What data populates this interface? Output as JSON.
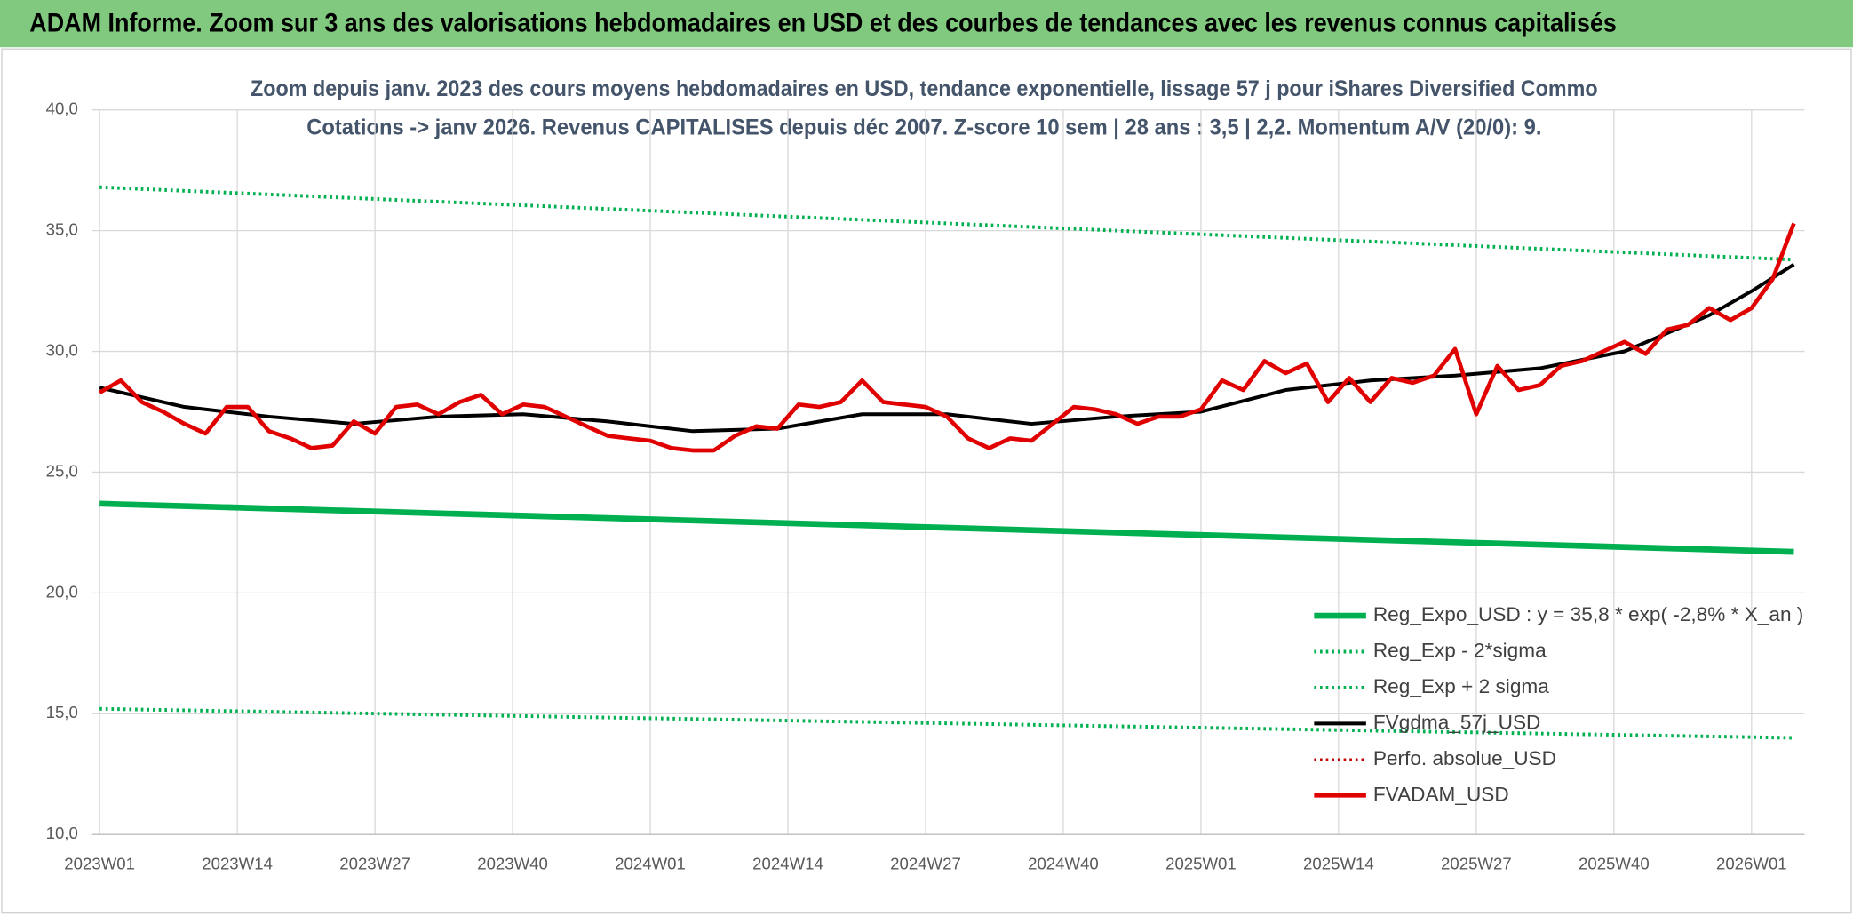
{
  "header": {
    "title": "ADAM Informe. Zoom sur 3 ans des valorisations hebdomadaires en USD et des courbes de tendances avec les revenus connus capitalisés"
  },
  "chart_data": {
    "type": "line",
    "title": "Zoom depuis janv. 2023 des cours moyens hebdomadaires en USD, tendance exponentielle, lissage 57 j pour iShares Diversified Commo",
    "subtitle": "Cotations -> janv 2026. Revenus CAPITALISES depuis déc 2007. Z-score 10 sem | 28 ans : 3,5 | 2,2. Momentum A/V (20/0): 9.",
    "xlim": [
      -0.7,
      161
    ],
    "xticks": [
      {
        "value": 0,
        "label": "2023W01"
      },
      {
        "value": 13,
        "label": "2023W14"
      },
      {
        "value": 26,
        "label": "2023W27"
      },
      {
        "value": 39,
        "label": "2023W40"
      },
      {
        "value": 52,
        "label": "2024W01"
      },
      {
        "value": 65,
        "label": "2024W14"
      },
      {
        "value": 78,
        "label": "2024W27"
      },
      {
        "value": 91,
        "label": "2024W40"
      },
      {
        "value": 104,
        "label": "2025W01"
      },
      {
        "value": 117,
        "label": "2025W14"
      },
      {
        "value": 130,
        "label": "2025W27"
      },
      {
        "value": 143,
        "label": "2025W40"
      },
      {
        "value": 156,
        "label": "2026W01"
      }
    ],
    "ylim": [
      10,
      40
    ],
    "yticks": [
      {
        "value": 10,
        "label": "10,0"
      },
      {
        "value": 15,
        "label": "15,0"
      },
      {
        "value": 20,
        "label": "20,0"
      },
      {
        "value": 25,
        "label": "25,0"
      },
      {
        "value": 30,
        "label": "30,0"
      },
      {
        "value": 35,
        "label": "35,0"
      },
      {
        "value": 40,
        "label": "40,0"
      }
    ],
    "grid": true,
    "legend": "lower right",
    "series": [
      {
        "name": "Reg_Expo_USD : y = 35,8 * exp( -2,8% *  X_an )",
        "color": "#00b050",
        "width": 5,
        "dash": "solid",
        "x": [
          0,
          80,
          160
        ],
        "values": [
          23.7,
          22.7,
          21.7
        ]
      },
      {
        "name": "Reg_Exp - 2*sigma",
        "color": "#00b050",
        "width": 3,
        "dash": "dotted",
        "x": [
          0,
          80,
          160
        ],
        "values": [
          15.2,
          14.6,
          14.0
        ]
      },
      {
        "name": "Reg_Exp + 2 sigma",
        "color": "#00b050",
        "width": 3,
        "dash": "dotted",
        "x": [
          0,
          80,
          160
        ],
        "values": [
          36.8,
          35.3,
          33.8
        ]
      },
      {
        "name": "FVgdma_57j_USD",
        "color": "#000000",
        "width": 3,
        "dash": "solid",
        "x": [
          0,
          8,
          16,
          24,
          32,
          40,
          48,
          56,
          64,
          72,
          80,
          88,
          96,
          104,
          112,
          120,
          128,
          136,
          144,
          152,
          156,
          160
        ],
        "values": [
          28.5,
          27.7,
          27.3,
          27.0,
          27.3,
          27.4,
          27.1,
          26.7,
          26.8,
          27.4,
          27.4,
          27.0,
          27.3,
          27.5,
          28.4,
          28.8,
          29.0,
          29.3,
          30.0,
          31.5,
          32.5,
          33.6
        ]
      },
      {
        "name": "Perfo. absolue_USD",
        "color": "#c00000",
        "width": 2,
        "dash": "dotted",
        "x": [],
        "values": []
      },
      {
        "name": "FVADAM_USD",
        "color": "#e00000",
        "width": 3.5,
        "dash": "solid",
        "x": [
          0,
          2,
          4,
          6,
          8,
          10,
          12,
          14,
          16,
          18,
          20,
          22,
          24,
          26,
          28,
          30,
          32,
          34,
          36,
          38,
          40,
          42,
          44,
          46,
          48,
          50,
          52,
          54,
          56,
          58,
          60,
          62,
          64,
          66,
          68,
          70,
          72,
          74,
          76,
          78,
          80,
          82,
          84,
          86,
          88,
          90,
          92,
          94,
          96,
          98,
          100,
          102,
          104,
          106,
          108,
          110,
          112,
          114,
          116,
          118,
          120,
          122,
          124,
          126,
          128,
          130,
          132,
          134,
          136,
          138,
          140,
          142,
          144,
          146,
          148,
          150,
          152,
          154,
          156,
          158,
          160
        ],
        "values": [
          28.3,
          28.8,
          27.9,
          27.5,
          27.0,
          26.6,
          27.7,
          27.7,
          26.7,
          26.4,
          26.0,
          26.1,
          27.1,
          26.6,
          27.7,
          27.8,
          27.4,
          27.9,
          28.2,
          27.4,
          27.8,
          27.7,
          27.3,
          26.9,
          26.5,
          26.4,
          26.3,
          26.0,
          25.9,
          25.9,
          26.5,
          26.9,
          26.8,
          27.8,
          27.7,
          27.9,
          28.8,
          27.9,
          27.8,
          27.7,
          27.3,
          26.4,
          26.0,
          26.4,
          26.3,
          27.0,
          27.7,
          27.6,
          27.4,
          27.0,
          27.3,
          27.3,
          27.6,
          28.8,
          28.4,
          29.6,
          29.1,
          29.5,
          27.9,
          28.9,
          27.9,
          28.9,
          28.7,
          29.0,
          30.1,
          27.4,
          29.4,
          28.4,
          28.6,
          29.4,
          29.6,
          30.0,
          30.4,
          29.9,
          30.9,
          31.1,
          31.8,
          31.3,
          31.8,
          33.0,
          35.3
        ]
      }
    ]
  }
}
